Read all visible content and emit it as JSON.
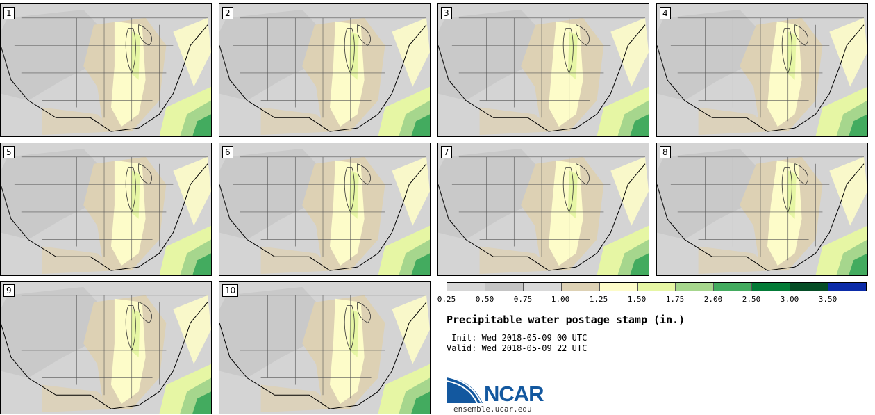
{
  "stamps": [
    {
      "label": "1"
    },
    {
      "label": "2"
    },
    {
      "label": "3"
    },
    {
      "label": "4"
    },
    {
      "label": "5"
    },
    {
      "label": "6"
    },
    {
      "label": "7"
    },
    {
      "label": "8"
    },
    {
      "label": "9"
    },
    {
      "label": "10"
    }
  ],
  "legend": {
    "colors": [
      "#d6d6d6",
      "#c4c4c4",
      "#d9d9d9",
      "#ddd1b4",
      "#fdfcc9",
      "#e6f6a4",
      "#a6d68d",
      "#43ab5f",
      "#037b37",
      "#054d26",
      "#0b2ba8"
    ],
    "ticks": [
      "0.25",
      "0.50",
      "0.75",
      "1.00",
      "1.25",
      "1.50",
      "1.75",
      "2.00",
      "2.50",
      "3.00",
      "3.50"
    ]
  },
  "title": "Precipitable water postage stamp (in.)",
  "init": " Init: Wed 2018-05-09 00 UTC",
  "valid": "Valid: Wed 2018-05-09 22 UTC",
  "logo": {
    "name": "NCAR",
    "url": "ensemble.ucar.edu"
  },
  "map_palette": {
    "background": "#d4d4d4",
    "dry": "#c4c4c4",
    "tan": "#ddd1b4",
    "pale_yellow": "#fdfcc9",
    "light_green": "#e6f6a4",
    "green": "#a6d68d",
    "mid_green": "#43ab5f"
  }
}
